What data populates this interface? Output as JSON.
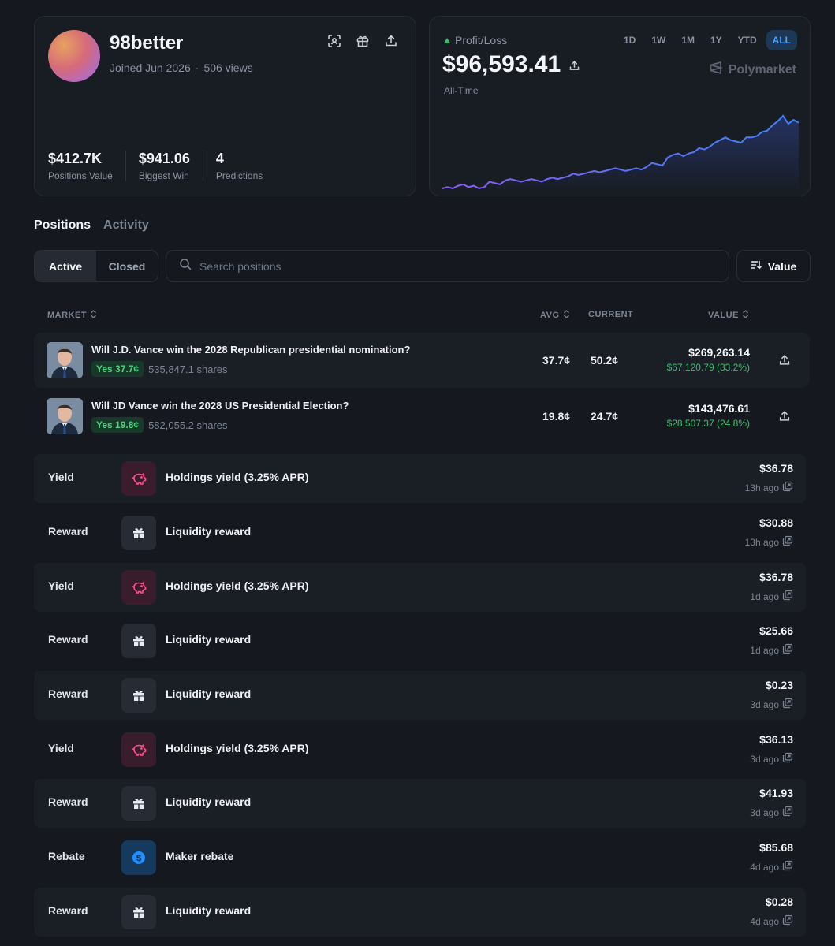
{
  "profile": {
    "username": "98better",
    "joined": "Joined Jun 2026",
    "views": "506 views",
    "stats": [
      {
        "value": "$412.7K",
        "label": "Positions Value"
      },
      {
        "value": "$941.06",
        "label": "Biggest Win"
      },
      {
        "value": "4",
        "label": "Predictions"
      }
    ],
    "icons": [
      "qr-scan-icon",
      "gift-icon",
      "share-icon"
    ]
  },
  "pnl": {
    "label": "Profit/Loss",
    "value": "$96,593.41",
    "period": "All-Time",
    "brand": "Polymarket",
    "ranges": [
      "1D",
      "1W",
      "1M",
      "1Y",
      "YTD",
      "ALL"
    ],
    "active_range": "ALL",
    "line_color_start": "#8b5cf6",
    "line_color_end": "#3b82f6",
    "trend": [
      2,
      3,
      2,
      4,
      5,
      3,
      4,
      2,
      3,
      7,
      6,
      5,
      8,
      9,
      8,
      7,
      8,
      9,
      8,
      7,
      9,
      10,
      9,
      10,
      11,
      13,
      12,
      13,
      14,
      15,
      14,
      15,
      16,
      17,
      16,
      15,
      16,
      17,
      16,
      18,
      21,
      20,
      19,
      25,
      27,
      28,
      26,
      28,
      29,
      32,
      31,
      33,
      36,
      38,
      40,
      38,
      37,
      36,
      40,
      40,
      41,
      44,
      45,
      49,
      52,
      56,
      50,
      53,
      51
    ]
  },
  "tabs": [
    {
      "label": "Positions",
      "active": true
    },
    {
      "label": "Activity",
      "active": false
    }
  ],
  "filter": {
    "active": "Active",
    "closed": "Closed",
    "search_placeholder": "Search positions",
    "sort_label": "Value"
  },
  "table_headers": {
    "market": "MARKET",
    "avg": "AVG",
    "current": "CURRENT",
    "value": "VALUE"
  },
  "positions": [
    {
      "title": "Will J.D. Vance win the 2028 Republican presidential nomination?",
      "outcome": "Yes 37.7¢",
      "shares": "535,847.1 shares",
      "avg": "37.7¢",
      "current": "50.2¢",
      "value": "$269,263.14",
      "pnl": "$67,120.79 (33.2%)"
    },
    {
      "title": "Will JD Vance win the 2028 US Presidential Election?",
      "outcome": "Yes 19.8¢",
      "shares": "582,055.2 shares",
      "avg": "19.8¢",
      "current": "24.7¢",
      "value": "$143,476.61",
      "pnl": "$28,507.37 (24.8%)"
    }
  ],
  "activity": [
    {
      "type": "Yield",
      "kind": "yield",
      "icon": "piggy-bank-icon",
      "label": "Holdings yield (3.25% APR)",
      "amount": "$36.78",
      "time": "13h ago"
    },
    {
      "type": "Reward",
      "kind": "reward",
      "icon": "gift-icon",
      "label": "Liquidity reward",
      "amount": "$30.88",
      "time": "13h ago"
    },
    {
      "type": "Yield",
      "kind": "yield",
      "icon": "piggy-bank-icon",
      "label": "Holdings yield (3.25% APR)",
      "amount": "$36.78",
      "time": "1d ago"
    },
    {
      "type": "Reward",
      "kind": "reward",
      "icon": "gift-icon",
      "label": "Liquidity reward",
      "amount": "$25.66",
      "time": "1d ago"
    },
    {
      "type": "Reward",
      "kind": "reward",
      "icon": "gift-icon",
      "label": "Liquidity reward",
      "amount": "$0.23",
      "time": "3d ago"
    },
    {
      "type": "Yield",
      "kind": "yield",
      "icon": "piggy-bank-icon",
      "label": "Holdings yield (3.25% APR)",
      "amount": "$36.13",
      "time": "3d ago"
    },
    {
      "type": "Reward",
      "kind": "reward",
      "icon": "gift-icon",
      "label": "Liquidity reward",
      "amount": "$41.93",
      "time": "3d ago"
    },
    {
      "type": "Rebate",
      "kind": "rebate",
      "icon": "dollar-coin-icon",
      "label": "Maker rebate",
      "amount": "$85.68",
      "time": "4d ago"
    },
    {
      "type": "Reward",
      "kind": "reward",
      "icon": "gift-icon",
      "label": "Liquidity reward",
      "amount": "$0.28",
      "time": "4d ago"
    }
  ]
}
